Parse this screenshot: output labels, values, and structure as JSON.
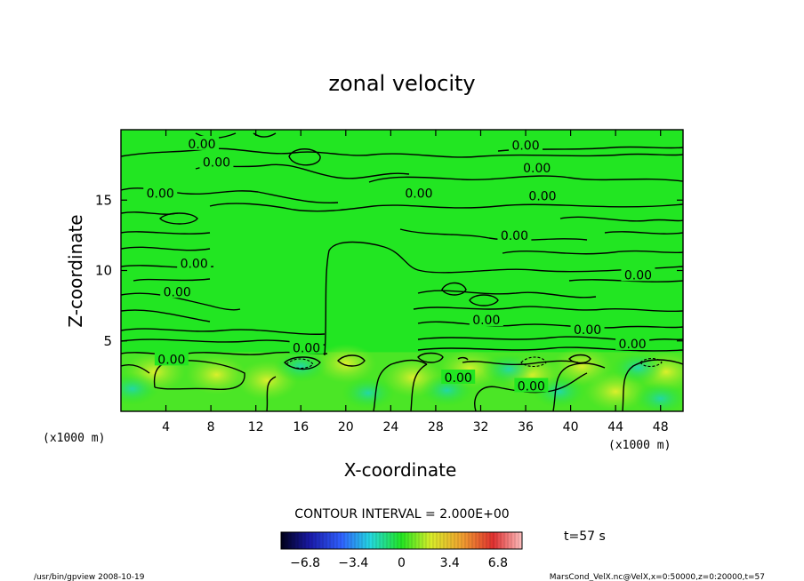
{
  "chart_data": {
    "type": "heatmap",
    "title": "zonal velocity",
    "xlabel": "X-coordinate",
    "ylabel": "Z-coordinate",
    "x_unit": "(x1000 m)",
    "y_unit": "(x1000 m)",
    "xlim": [
      0,
      50
    ],
    "ylim": [
      0,
      20
    ],
    "x_ticks": [
      "4",
      "8",
      "12",
      "16",
      "20",
      "24",
      "28",
      "32",
      "36",
      "40",
      "44",
      "48"
    ],
    "x_tick_values": [
      4,
      8,
      12,
      16,
      20,
      24,
      28,
      32,
      36,
      40,
      44,
      48
    ],
    "y_ticks": [
      "5",
      "10",
      "15"
    ],
    "y_tick_values": [
      5,
      10,
      15
    ],
    "contour_interval_text": "CONTOUR INTERVAL = 2.000E+00",
    "contour_level_label": "0.00",
    "contour_label_positions": [
      {
        "x": 7.2,
        "z": 19.0
      },
      {
        "x": 8.5,
        "z": 17.7
      },
      {
        "x": 3.5,
        "z": 15.5
      },
      {
        "x": 26.5,
        "z": 15.5
      },
      {
        "x": 36.0,
        "z": 18.9
      },
      {
        "x": 37.0,
        "z": 17.3
      },
      {
        "x": 37.5,
        "z": 15.3
      },
      {
        "x": 35.0,
        "z": 12.5
      },
      {
        "x": 6.5,
        "z": 10.5
      },
      {
        "x": 5.0,
        "z": 8.5
      },
      {
        "x": 46.0,
        "z": 9.7
      },
      {
        "x": 32.5,
        "z": 6.5
      },
      {
        "x": 41.5,
        "z": 5.8
      },
      {
        "x": 45.5,
        "z": 4.8
      },
      {
        "x": 16.5,
        "z": 4.5
      },
      {
        "x": 4.5,
        "z": 3.7
      },
      {
        "x": 30.0,
        "z": 2.4
      },
      {
        "x": 36.5,
        "z": 1.8
      }
    ],
    "colorbar": {
      "min": -8.5,
      "max": 8.5,
      "tick_labels": [
        "-6.8",
        "-3.4",
        "0",
        "3.4",
        "6.8"
      ],
      "tick_values": [
        -6.8,
        -3.4,
        0,
        3.4,
        6.8
      ]
    },
    "field_pattern": "near-zero (green) over most of the domain; alternating weak positive (yellow) and negative (cyan) cells below z ≈ 4 km",
    "colors": {
      "zero": "#22e622",
      "positive": "#d8ee2a",
      "negative": "#22d8a0",
      "contour_line": "#000000"
    }
  },
  "time_label": "t=57 s",
  "footer": {
    "left": "/usr/bin/gpview   2008-10-19",
    "right": "MarsCond_VelX.nc@VelX,x=0:50000,z=0:20000,t=57"
  }
}
